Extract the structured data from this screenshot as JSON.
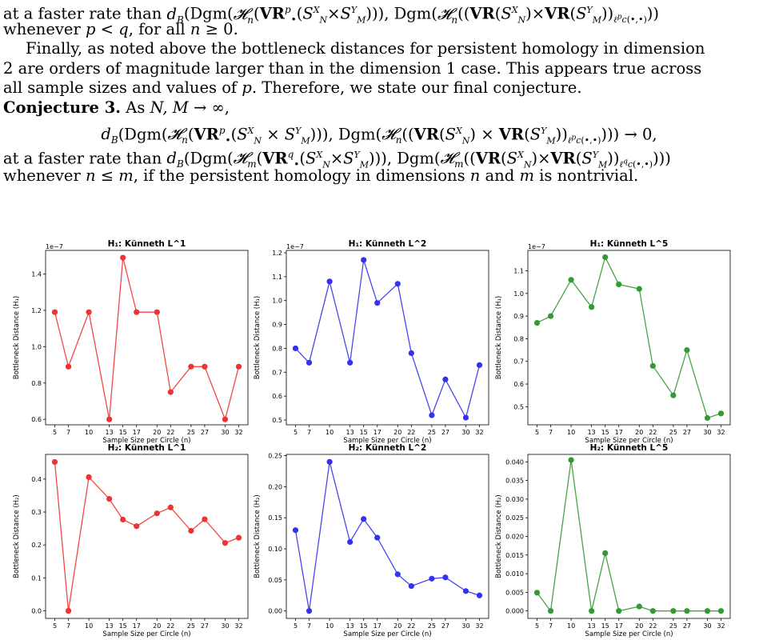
{
  "text": {
    "lines": [
      {
        "text": "at a faster rate than d_B(Dgm(𝓗_n(VR^p_•(S^X_N × S^Y_M))), Dgm(𝓗_n((VR(S^X_N) × VR(S^Y_M))_{ℓ^p_c(•,•)}))",
        "style": ""
      },
      {
        "text": "whenever p < q, for all n ≥ 0.",
        "style": ""
      },
      {
        "text": "Finally, as noted above the bottleneck distances for persistent homology in dimension",
        "style": "indent"
      },
      {
        "text": "2 are orders of magnitude larger than in the dimension 1 case. This appears true across",
        "style": ""
      },
      {
        "text": "all sample sizes and values of p. Therefore, we state our final conjecture.",
        "style": ""
      },
      {
        "text": "Conjecture 3. As N, M → ∞,",
        "style": "conj"
      },
      {
        "text": "d_B(Dgm(𝓗_n(VR^p_•(S^X_N × S^Y_M))), Dgm(𝓗_n((VR(S^X_N) × VR(S^Y_M))_{ℓ^p_c(•,•)}))) → 0,",
        "style": "center"
      },
      {
        "text": "at a faster rate than d_B(Dgm(𝓗_m(VR^q_•(S^X_N × S^Y_M))), Dgm(𝓗_m((VR(S^X_N) × VR(S^Y_M))_{ℓ^q_c(•,•)})))",
        "style": ""
      },
      {
        "text": "whenever n ≤ m, if the persistent homology in dimensions n and m is nontrivial.",
        "style": ""
      }
    ]
  },
  "chart_data": [
    {
      "type": "line",
      "title": "H₁: Künneth L^1",
      "color": "#ee3333",
      "xlabel": "Sample Size per Circle (n)",
      "ylabel": "Bottleneck Distance (H₁)",
      "multiplier": "1e−7",
      "x": [
        5,
        7,
        10,
        13,
        15,
        17,
        20,
        22,
        25,
        27,
        30,
        32
      ],
      "y": [
        1.19,
        0.89,
        1.19,
        0.6,
        1.49,
        1.19,
        1.19,
        0.75,
        0.89,
        0.89,
        0.6,
        0.89
      ],
      "ylim": [
        0.57,
        1.53
      ],
      "yticks": [
        0.6,
        0.8,
        1.0,
        1.2,
        1.4
      ],
      "ytick_labels": [
        "0.6",
        "0.8",
        "1.0",
        "1.2",
        "1.4"
      ]
    },
    {
      "type": "line",
      "title": "H₁: Künneth L^2",
      "color": "#3333ee",
      "xlabel": "Sample Size per Circle (n)",
      "ylabel": "Bottleneck Distance (H₁)",
      "multiplier": "1e−7",
      "x": [
        5,
        7,
        10,
        13,
        15,
        17,
        20,
        22,
        25,
        27,
        30,
        32
      ],
      "y": [
        0.8,
        0.74,
        1.08,
        0.74,
        1.17,
        0.99,
        1.07,
        0.78,
        0.52,
        0.67,
        0.51,
        0.73
      ],
      "ylim": [
        0.48,
        1.21
      ],
      "yticks": [
        0.5,
        0.6,
        0.7,
        0.8,
        0.9,
        1.0,
        1.1,
        1.2
      ],
      "ytick_labels": [
        "0.5",
        "0.6",
        "0.7",
        "0.8",
        "0.9",
        "1.0",
        "1.1",
        "1.2"
      ]
    },
    {
      "type": "line",
      "title": "H₁: Künneth L^5",
      "color": "#339933",
      "xlabel": "Sample Size per Circle (n)",
      "ylabel": "Bottleneck Distance (H₁)",
      "multiplier": "1e−7",
      "x": [
        5,
        7,
        10,
        13,
        15,
        17,
        20,
        22,
        25,
        27,
        30,
        32
      ],
      "y": [
        0.87,
        0.9,
        1.06,
        0.94,
        1.16,
        1.04,
        1.02,
        0.68,
        0.55,
        0.75,
        0.45,
        0.47
      ],
      "ylim": [
        0.42,
        1.19
      ],
      "yticks": [
        0.5,
        0.6,
        0.7,
        0.8,
        0.9,
        1.0,
        1.1
      ],
      "ytick_labels": [
        "0.5",
        "0.6",
        "0.7",
        "0.8",
        "0.9",
        "1.0",
        "1.1"
      ]
    },
    {
      "type": "line",
      "title": "H₂: Künneth L^1",
      "color": "#ee3333",
      "xlabel": "Sample Size per Circle (n)",
      "ylabel": "Bottleneck Distance (H₂)",
      "multiplier": "",
      "x": [
        5,
        7,
        10,
        13,
        15,
        17,
        20,
        22,
        25,
        27,
        30,
        32
      ],
      "y": [
        0.452,
        0.0,
        0.406,
        0.34,
        0.277,
        0.257,
        0.296,
        0.314,
        0.243,
        0.278,
        0.206,
        0.222
      ],
      "ylim": [
        -0.023,
        0.475
      ],
      "yticks": [
        0.0,
        0.1,
        0.2,
        0.3,
        0.4
      ],
      "ytick_labels": [
        "0.0",
        "0.1",
        "0.2",
        "0.3",
        "0.4"
      ]
    },
    {
      "type": "line",
      "title": "H₂: Künneth L^2",
      "color": "#3333ee",
      "xlabel": "Sample Size per Circle (n)",
      "ylabel": "Bottleneck Distance (H₂)",
      "multiplier": "",
      "x": [
        5,
        7,
        10,
        13,
        15,
        17,
        20,
        22,
        25,
        27,
        30,
        32
      ],
      "y": [
        0.13,
        0.0,
        0.24,
        0.111,
        0.148,
        0.118,
        0.059,
        0.04,
        0.052,
        0.054,
        0.032,
        0.025
      ],
      "ylim": [
        -0.012,
        0.252
      ],
      "yticks": [
        0.0,
        0.05,
        0.1,
        0.15,
        0.2,
        0.25
      ],
      "ytick_labels": [
        "0.00",
        "0.05",
        "0.10",
        "0.15",
        "0.20",
        "0.25"
      ]
    },
    {
      "type": "line",
      "title": "H₂: Künneth L^5",
      "color": "#339933",
      "xlabel": "Sample Size per Circle (n)",
      "ylabel": "Bottleneck Distance (H₂)",
      "multiplier": "",
      "x": [
        5,
        7,
        10,
        13,
        15,
        17,
        20,
        22,
        25,
        27,
        30,
        32
      ],
      "y": [
        0.0049,
        0.0,
        0.0405,
        0.0,
        0.0155,
        0.0,
        0.0012,
        0.0,
        0.0,
        0.0,
        0.0,
        0.0
      ],
      "ylim": [
        -0.002,
        0.042
      ],
      "yticks": [
        0.0,
        0.005,
        0.01,
        0.015,
        0.02,
        0.025,
        0.03,
        0.035,
        0.04
      ],
      "ytick_labels": [
        "0.000",
        "0.005",
        "0.010",
        "0.015",
        "0.020",
        "0.025",
        "0.030",
        "0.035",
        "0.040"
      ]
    }
  ]
}
